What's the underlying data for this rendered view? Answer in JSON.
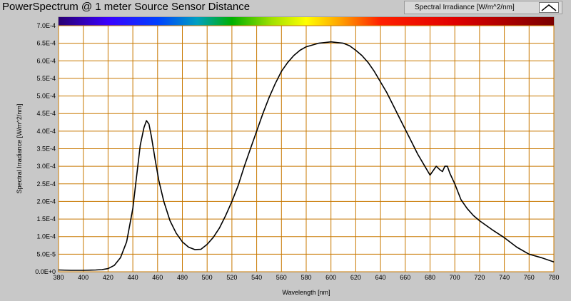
{
  "chart_data": {
    "type": "line",
    "title": "PowerSpectrum @ 1 meter Source Sensor Distance",
    "xlabel": "Wavelength [nm]",
    "ylabel": "Spectral Irradiance [W/m^2/nm]",
    "xlim": [
      380,
      780
    ],
    "ylim": [
      0,
      0.0007
    ],
    "x_ticks": [
      "380",
      "400",
      "420",
      "440",
      "460",
      "480",
      "500",
      "520",
      "540",
      "560",
      "580",
      "600",
      "620",
      "640",
      "660",
      "680",
      "700",
      "720",
      "740",
      "760",
      "780"
    ],
    "y_ticks": [
      "0.0E+0",
      "5.0E-5",
      "1.0E-4",
      "1.5E-4",
      "2.0E-4",
      "2.5E-4",
      "3.0E-4",
      "3.5E-4",
      "4.0E-4",
      "4.5E-4",
      "5.0E-4",
      "5.5E-4",
      "6.0E-4",
      "6.5E-4",
      "7.0E-4"
    ],
    "grid": true,
    "legend": "top-right",
    "colors": {
      "grid": "#c87800",
      "plot_bg": "#ffffff",
      "line": "#000000",
      "frame_bg": "#c8c8c8"
    },
    "series": [
      {
        "name": "Spectral Irradiance [W/m^2/nm]",
        "icon": "line-sample-icon",
        "x": [
          380,
          390,
          400,
          410,
          415,
          420,
          425,
          430,
          435,
          440,
          443,
          446,
          449,
          451,
          453,
          455,
          458,
          461,
          465,
          470,
          475,
          480,
          485,
          490,
          495,
          500,
          505,
          510,
          515,
          520,
          525,
          530,
          535,
          540,
          545,
          550,
          555,
          560,
          565,
          570,
          575,
          580,
          585,
          590,
          595,
          600,
          605,
          610,
          615,
          620,
          625,
          630,
          635,
          640,
          645,
          650,
          655,
          660,
          665,
          670,
          675,
          680,
          685,
          688,
          690,
          692,
          694,
          696,
          700,
          705,
          710,
          715,
          720,
          730,
          740,
          750,
          760,
          770,
          780
        ],
        "y": [
          5e-06,
          4e-06,
          4e-06,
          5e-06,
          6e-06,
          9e-06,
          1.8e-05,
          4e-05,
          8.5e-05,
          0.00018,
          0.00027,
          0.00036,
          0.00041,
          0.00043,
          0.00042,
          0.000385,
          0.00032,
          0.00026,
          0.0002,
          0.000145,
          0.00011,
          8.5e-05,
          7e-05,
          6.3e-05,
          6.4e-05,
          7.8e-05,
          9.8e-05,
          0.000125,
          0.00016,
          0.0002,
          0.000245,
          0.0003,
          0.00035,
          0.0004,
          0.00045,
          0.000495,
          0.000535,
          0.00057,
          0.000595,
          0.000615,
          0.00063,
          0.00064,
          0.000645,
          0.00065,
          0.000652,
          0.000654,
          0.000652,
          0.00065,
          0.000643,
          0.00063,
          0.000615,
          0.000595,
          0.00057,
          0.00054,
          0.00051,
          0.000475,
          0.00044,
          0.000405,
          0.00037,
          0.000335,
          0.000305,
          0.000275,
          0.0003,
          0.00029,
          0.000285,
          0.0003,
          0.0003,
          0.00028,
          0.00025,
          0.000205,
          0.00018,
          0.00016,
          0.000145,
          0.00012,
          9.7e-05,
          7e-05,
          5e-05,
          4e-05,
          2.8e-05
        ]
      }
    ]
  }
}
